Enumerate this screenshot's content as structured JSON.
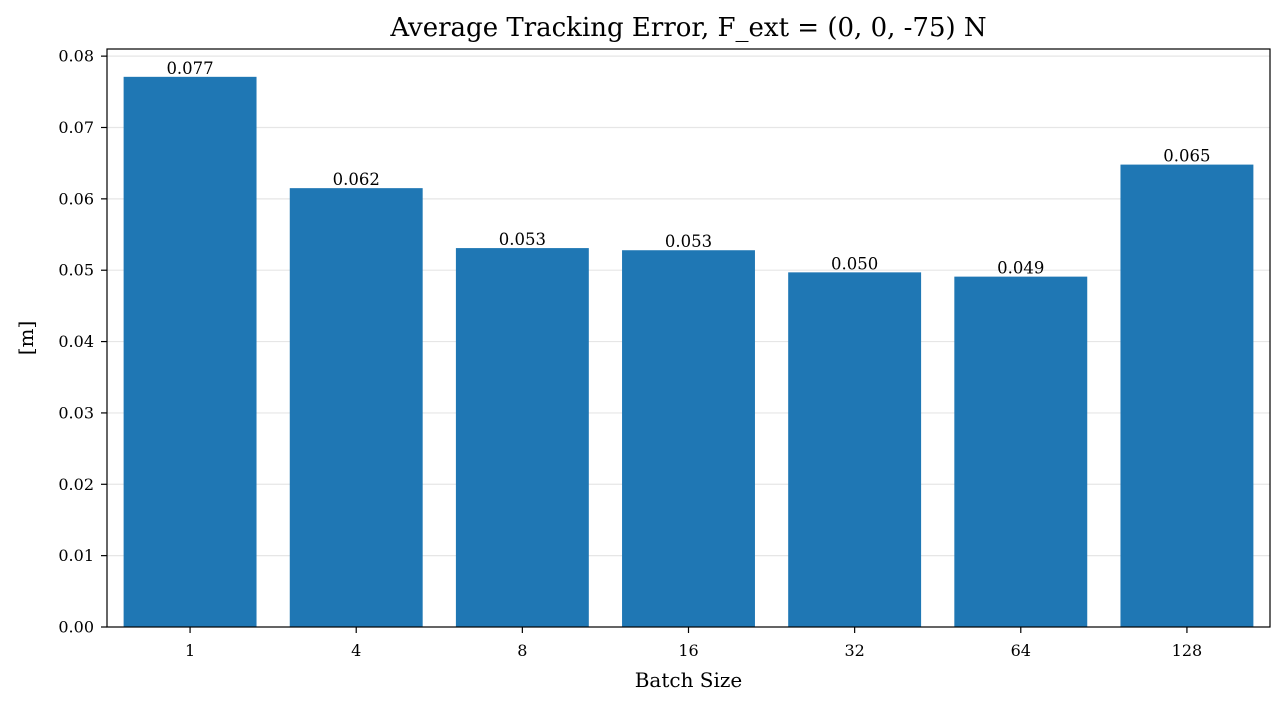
{
  "chart_data": {
    "type": "bar",
    "title": "Average Tracking Error, F_ext = (0, 0, -75) N",
    "xlabel": "Batch Size",
    "ylabel": "[m]",
    "categories": [
      "1",
      "4",
      "8",
      "16",
      "32",
      "64",
      "128"
    ],
    "values": [
      0.0771,
      0.0615,
      0.0531,
      0.0528,
      0.0497,
      0.0491,
      0.0648
    ],
    "data_labels": [
      "0.077",
      "0.062",
      "0.053",
      "0.053",
      "0.050",
      "0.049",
      "0.065"
    ],
    "ylim": [
      0,
      0.081
    ],
    "yticks": [
      0.0,
      0.01,
      0.02,
      0.03,
      0.04,
      0.05,
      0.06,
      0.07,
      0.08
    ],
    "ytick_labels": [
      "0.00",
      "0.01",
      "0.02",
      "0.03",
      "0.04",
      "0.05",
      "0.06",
      "0.07",
      "0.08"
    ],
    "grid": "y",
    "bar_color": "#1f77b4"
  }
}
